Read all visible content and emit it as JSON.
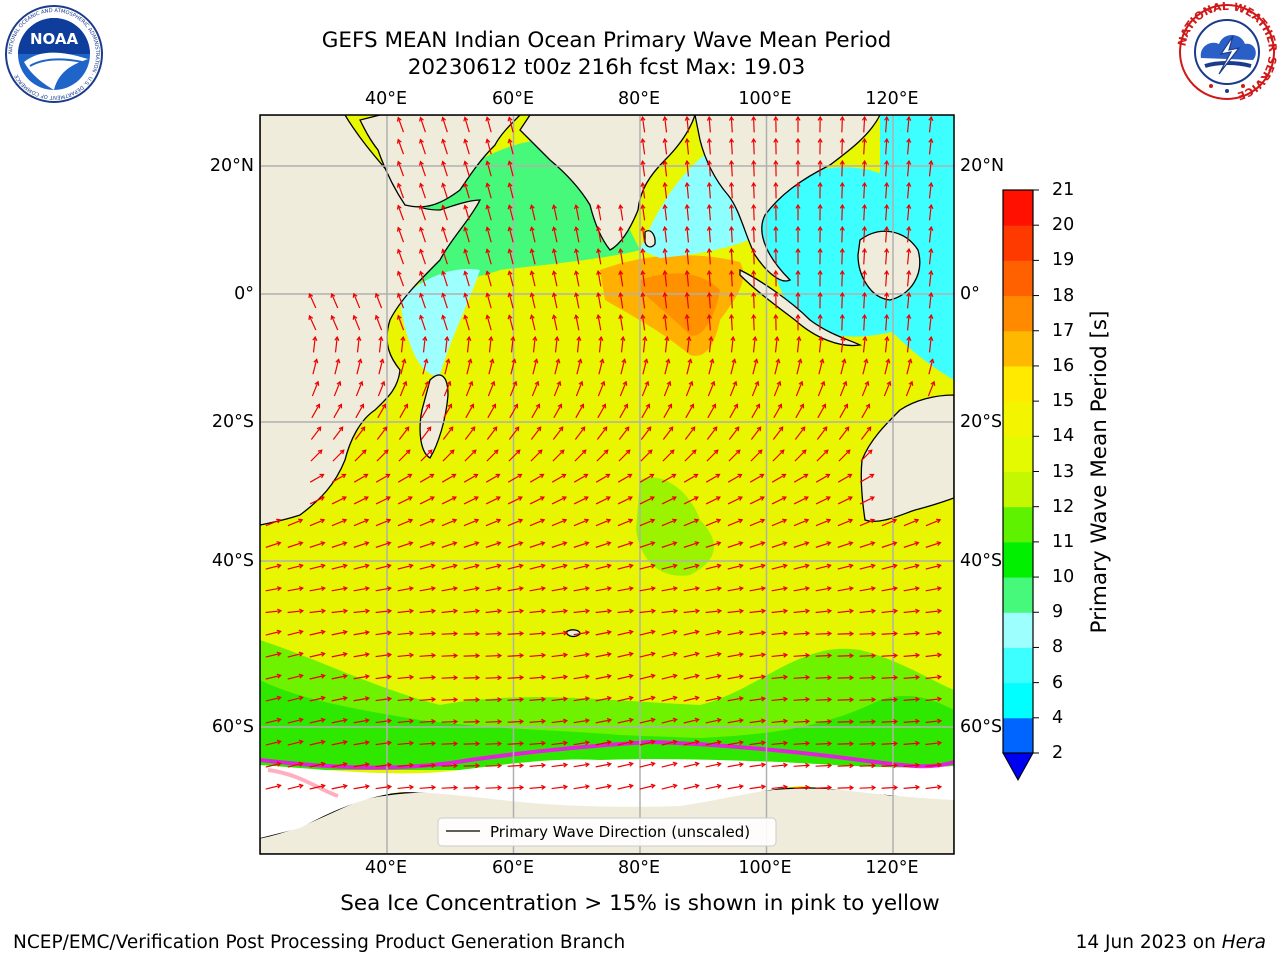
{
  "header": {
    "title_line1": "GEFS MEAN Indian Ocean Primary Wave Mean Period",
    "title_line2": "20230612 t00z 216h fcst   Max: 19.03"
  },
  "logos": {
    "noaa_text": "NOAA",
    "noaa_ring_text": "NATIONAL OCEANIC AND ATMOSPHERIC ADMINISTRATION · U.S. DEPARTMENT OF COMMERCE",
    "nws_ring_text": "NATIONAL WEATHER SERVICE"
  },
  "map": {
    "lon_labels": [
      "40°E",
      "60°E",
      "80°E",
      "100°E",
      "120°E"
    ],
    "lon_values": [
      40,
      60,
      80,
      100,
      120
    ],
    "lat_labels": [
      "20°N",
      "0°",
      "20°S",
      "40°S",
      "60°S"
    ],
    "lat_values": [
      20,
      0,
      -20,
      -40,
      -60
    ],
    "lon_range": [
      20,
      130
    ],
    "lat_range": [
      -70,
      25
    ],
    "legend_label": "Primary Wave Direction (unscaled)",
    "colors": {
      "land": "#efecdc",
      "sea_ice_white": "#ffffff",
      "grid": "#b0b0b0",
      "arrow": "#ee0000"
    }
  },
  "colorbar": {
    "label": "Primary Wave Mean Period [s]",
    "ticks": [
      "2",
      "4",
      "6",
      "8",
      "9",
      "10",
      "11",
      "12",
      "13",
      "14",
      "15",
      "16",
      "17",
      "18",
      "19",
      "20",
      "21"
    ],
    "colors_bottom_to_top": [
      "#0064ff",
      "#00ffff",
      "#3dffff",
      "#9effff",
      "#47f97b",
      "#00f000",
      "#5ff200",
      "#c4f800",
      "#e4fa00",
      "#f2f400",
      "#ffea00",
      "#ffb800",
      "#ff8a00",
      "#ff6000",
      "#ff3a00",
      "#ff1000"
    ],
    "extend_color": "#0000f0"
  },
  "caption": "Sea Ice Concentration > 15% is shown in pink to yellow",
  "footer": {
    "left": "NCEP/EMC/Verification Post Processing Product Generation Branch",
    "right_prefix": "14 Jun 2023 on ",
    "right_host": "Hera"
  }
}
